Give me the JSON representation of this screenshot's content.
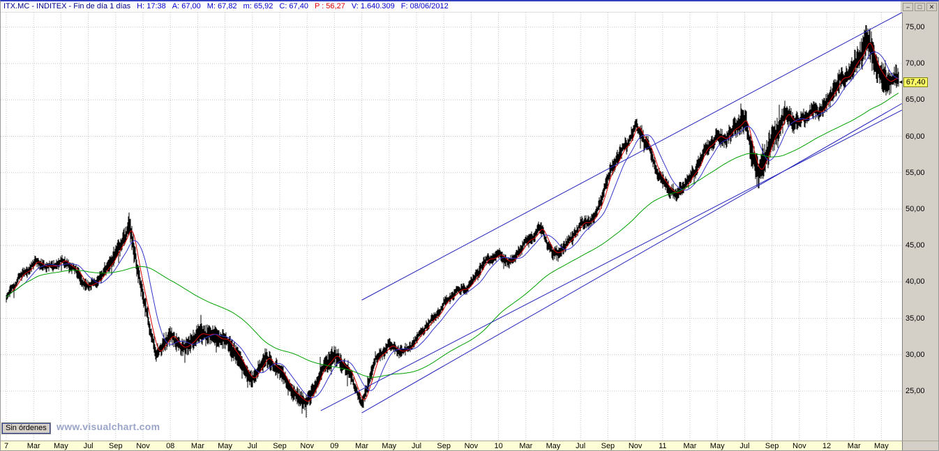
{
  "window": {
    "title": "ITX.MC - INDITEX - Fin de día 1 días",
    "title_color": "#00008b",
    "fields": [
      {
        "label": "H:",
        "value": "17:38",
        "color": "#0000cd"
      },
      {
        "label": "A:",
        "value": "67,00",
        "color": "#0000cd"
      },
      {
        "label": "M:",
        "value": "67,82",
        "color": "#0000cd"
      },
      {
        "label": "m:",
        "value": "65,92",
        "color": "#0000cd"
      },
      {
        "label": "C:",
        "value": "67,40",
        "color": "#0000cd"
      },
      {
        "label": "P :",
        "value": "56,27",
        "color": "#e00000"
      },
      {
        "label": "V:",
        "value": "1.640.309",
        "color": "#0000cd"
      },
      {
        "label": "F:",
        "value": "08/06/2012",
        "color": "#0000cd"
      }
    ],
    "controls": [
      {
        "name": "minimize",
        "glyph": "–"
      },
      {
        "name": "restore",
        "glyph": "□"
      },
      {
        "name": "close",
        "glyph": "✕"
      }
    ]
  },
  "footer": {
    "orders_button": "Sin órdenes",
    "watermark": "www.visualchart.com"
  },
  "chart_data": {
    "type": "candlestick",
    "symbol": "ITX.MC",
    "company": "INDITEX",
    "timeframe": "Fin de día 1 días",
    "title": "ITX.MC - INDITEX - Fin de día 1 días",
    "last_price": 67.4,
    "last_price_label": "67,40",
    "candle_color": "#000000",
    "grid_color": "#c4c4c4",
    "background": "#ffffff",
    "y_axis": {
      "side": "right",
      "min_visible": 18.2,
      "max_visible": 77.0,
      "tick_step": 5,
      "ticks": [
        {
          "price": 75,
          "label": "75,00"
        },
        {
          "price": 70,
          "label": "70,00"
        },
        {
          "price": 65,
          "label": "65,00"
        },
        {
          "price": 60,
          "label": "60,00"
        },
        {
          "price": 55,
          "label": "55,00"
        },
        {
          "price": 50,
          "label": "50,00"
        },
        {
          "price": 45,
          "label": "45,00"
        },
        {
          "price": 40,
          "label": "40,00"
        },
        {
          "price": 35,
          "label": "35,00"
        },
        {
          "price": 30,
          "label": "30,00"
        },
        {
          "price": 25,
          "label": "25,00"
        }
      ]
    },
    "x_axis": {
      "start_month": "2007-01",
      "end_month": "2012-06",
      "label_every_months": 2,
      "labels": [
        "7",
        "Mar",
        "May",
        "Jul",
        "Sep",
        "Nov",
        "08",
        "Mar",
        "May",
        "Jul",
        "Sep",
        "Nov",
        "09",
        "Mar",
        "May",
        "Jul",
        "Sep",
        "Nov",
        "10",
        "Mar",
        "May",
        "Jul",
        "Sep",
        "Nov",
        "11",
        "Mar",
        "May",
        "Jul",
        "Sep",
        "Nov",
        "12",
        "Mar",
        "May"
      ]
    },
    "monthly_closes_start": "2007-01",
    "monthly_closes": [
      37.5,
      41.0,
      42.5,
      42.0,
      43.0,
      41.5,
      39.5,
      40.5,
      44.0,
      47.5,
      38.0,
      30.0,
      32.5,
      31.0,
      32.5,
      33.0,
      32.0,
      29.5,
      26.5,
      29.5,
      28.0,
      24.5,
      23.5,
      27.5,
      30.0,
      28.0,
      23.0,
      29.5,
      31.0,
      30.5,
      32.0,
      34.5,
      37.0,
      38.5,
      40.0,
      42.5,
      44.0,
      42.5,
      45.5,
      47.5,
      43.5,
      45.5,
      47.5,
      49.0,
      54.0,
      58.0,
      61.5,
      58.0,
      54.0,
      51.5,
      54.5,
      57.5,
      60.0,
      60.5,
      62.0,
      55.0,
      59.0,
      63.5,
      61.5,
      63.5,
      64.5,
      67.5,
      70.0,
      72.5,
      68.5,
      67.4
    ],
    "moving_averages": [
      {
        "name": "fast",
        "color": "#e00000",
        "window_days": 10
      },
      {
        "name": "medium",
        "color": "#3333cc",
        "window_days": 30
      },
      {
        "name": "slow",
        "color": "#00a000",
        "window_days": 200
      }
    ],
    "trendlines": [
      {
        "name": "channel-upper",
        "color": "#2222bb",
        "from": {
          "month": 26,
          "price": 37.5
        },
        "to": {
          "month": 65.5,
          "price": 77.0
        }
      },
      {
        "name": "channel-lower",
        "color": "#2222bb",
        "from": {
          "month": 26,
          "price": 22.0
        },
        "to": {
          "month": 65.5,
          "price": 64.5
        }
      },
      {
        "name": "channel-lower-2",
        "color": "#2222bb",
        "from": {
          "month": 23,
          "price": 22.3
        },
        "to": {
          "month": 65.5,
          "price": 63.6
        }
      }
    ]
  }
}
